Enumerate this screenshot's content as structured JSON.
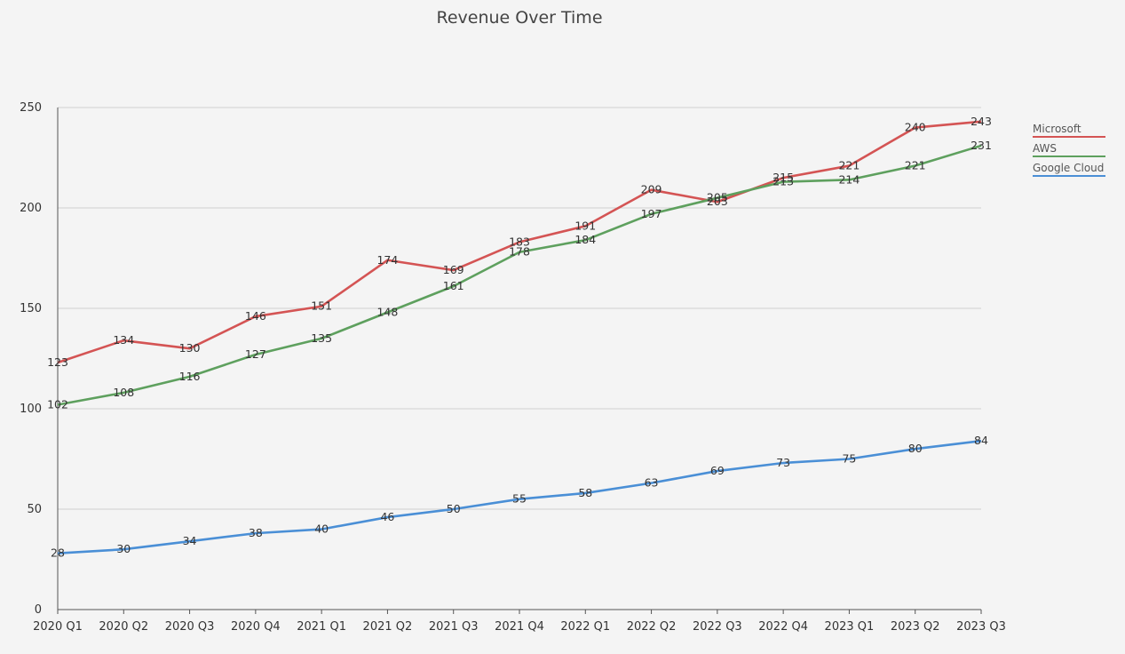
{
  "chart_data": {
    "type": "line",
    "title": "Revenue Over Time",
    "xlabel": "",
    "ylabel": "",
    "ylim": [
      0,
      250
    ],
    "yticks": [
      0,
      50,
      100,
      150,
      200,
      250
    ],
    "grid": "horizontal",
    "legend_position": "top-right",
    "categories": [
      "2020 Q1",
      "2020 Q2",
      "2020 Q3",
      "2020 Q4",
      "2021 Q1",
      "2021 Q2",
      "2021 Q3",
      "2021 Q4",
      "2022 Q1",
      "2022 Q2",
      "2022 Q3",
      "2022 Q4",
      "2023 Q1",
      "2023 Q2",
      "2023 Q3"
    ],
    "series": [
      {
        "name": "Microsoft",
        "color": "#d45454",
        "values": [
          123,
          134,
          130,
          146,
          151,
          174,
          169,
          183,
          191,
          209,
          203,
          215,
          221,
          240,
          243
        ]
      },
      {
        "name": "AWS",
        "color": "#5ea05e",
        "values": [
          102,
          108,
          116,
          127,
          135,
          148,
          161,
          178,
          184,
          197,
          205,
          213,
          214,
          221,
          231
        ]
      },
      {
        "name": "Google Cloud",
        "color": "#4a8fd6",
        "values": [
          28,
          30,
          34,
          38,
          40,
          46,
          50,
          55,
          58,
          63,
          69,
          73,
          75,
          80,
          84
        ]
      }
    ]
  }
}
